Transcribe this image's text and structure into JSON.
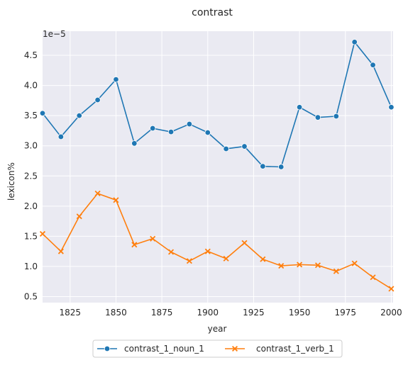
{
  "chart_data": {
    "type": "line",
    "title": "contrast",
    "xlabel": "year",
    "ylabel": "lexicon%",
    "y_offset_label": "1e−5",
    "xlim": [
      1810,
      2001
    ],
    "ylim": [
      4e-06,
      4.9e-05
    ],
    "xticks": [
      1825,
      1850,
      1875,
      1900,
      1925,
      1950,
      1975,
      2000
    ],
    "yticks": [
      5e-06,
      1e-05,
      1.5e-05,
      2e-05,
      2.5e-05,
      3e-05,
      3.5e-05,
      4e-05,
      4.5e-05
    ],
    "ytick_labels": [
      "0.5",
      "1.0",
      "1.5",
      "2.0",
      "2.5",
      "3.0",
      "3.5",
      "4.0",
      "4.5"
    ],
    "grid": true,
    "legend_position": "bottom-center, outside plot",
    "x": [
      1810,
      1820,
      1830,
      1840,
      1850,
      1860,
      1870,
      1880,
      1890,
      1900,
      1910,
      1920,
      1930,
      1940,
      1950,
      1960,
      1970,
      1980,
      1990,
      2000
    ],
    "series": [
      {
        "name": "contrast_1_noun_1",
        "color": "#1f77b4",
        "marker": "circle",
        "values": [
          3.54e-05,
          3.15e-05,
          3.5e-05,
          3.76e-05,
          4.1e-05,
          3.04e-05,
          3.29e-05,
          3.23e-05,
          3.36e-05,
          3.22e-05,
          2.95e-05,
          2.99e-05,
          2.66e-05,
          2.65e-05,
          3.64e-05,
          3.47e-05,
          3.49e-05,
          4.72e-05,
          4.34e-05,
          3.64e-05
        ]
      },
      {
        "name": "contrast_1_verb_1",
        "color": "#ff7f0e",
        "marker": "x",
        "values": [
          1.54e-05,
          1.25e-05,
          1.83e-05,
          2.21e-05,
          2.1e-05,
          1.36e-05,
          1.46e-05,
          1.24e-05,
          1.09e-05,
          1.25e-05,
          1.13e-05,
          1.39e-05,
          1.12e-05,
          1.01e-05,
          1.03e-05,
          1.02e-05,
          9.2e-06,
          1.05e-05,
          8.2e-06,
          6.3e-06
        ]
      }
    ]
  },
  "colors": {
    "plot_background": "#eaeaf2",
    "grid": "#ffffff",
    "text": "#262626"
  }
}
